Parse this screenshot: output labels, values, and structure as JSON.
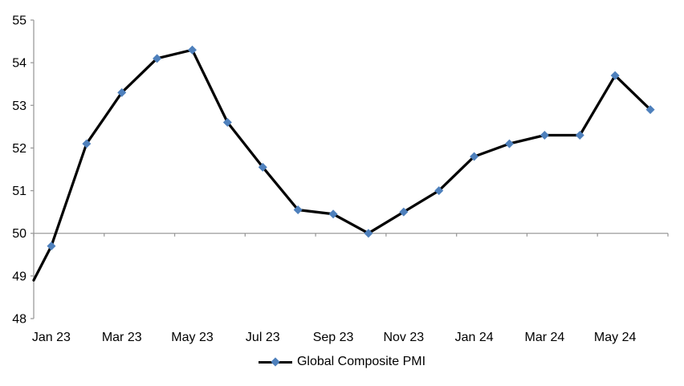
{
  "chart_data": {
    "type": "line",
    "title": "",
    "categories": [
      "Jan 23",
      "Feb 23",
      "Mar 23",
      "Apr 23",
      "May 23",
      "Jun 23",
      "Jul 23",
      "Aug 23",
      "Sep 23",
      "Oct 23",
      "Nov 23",
      "Dec 23",
      "Jan 24",
      "Feb 24",
      "Mar 24",
      "Apr 24",
      "May 24",
      "Jun 24"
    ],
    "series": [
      {
        "name": "Global Composite PMI",
        "values": [
          49.7,
          52.1,
          53.3,
          54.1,
          54.3,
          52.6,
          51.55,
          50.55,
          50.45,
          50.0,
          50.5,
          51.0,
          51.8,
          52.1,
          52.3,
          52.3,
          53.7,
          52.9
        ],
        "line_enters_from_left_axis_at": 48.9,
        "line_color": "#000000",
        "marker": "diamond",
        "marker_color": "#4E80BC"
      }
    ],
    "x_tick_labels": [
      "Jan 23",
      "Mar 23",
      "May 23",
      "Jul 23",
      "Sep 23",
      "Nov 23",
      "Jan 24",
      "Mar 24",
      "May 24"
    ],
    "y_tick_labels": [
      "55",
      "54",
      "53",
      "52",
      "51",
      "50",
      "49",
      "48"
    ],
    "ylim": [
      48,
      55
    ],
    "x_axis_crosses_at": 50,
    "legend": {
      "label": "Global Composite PMI",
      "position": "bottom-center"
    },
    "axis_color": "#9B9B9B",
    "text_color": "#000000",
    "background": "#FFFFFF",
    "grid": "off"
  }
}
